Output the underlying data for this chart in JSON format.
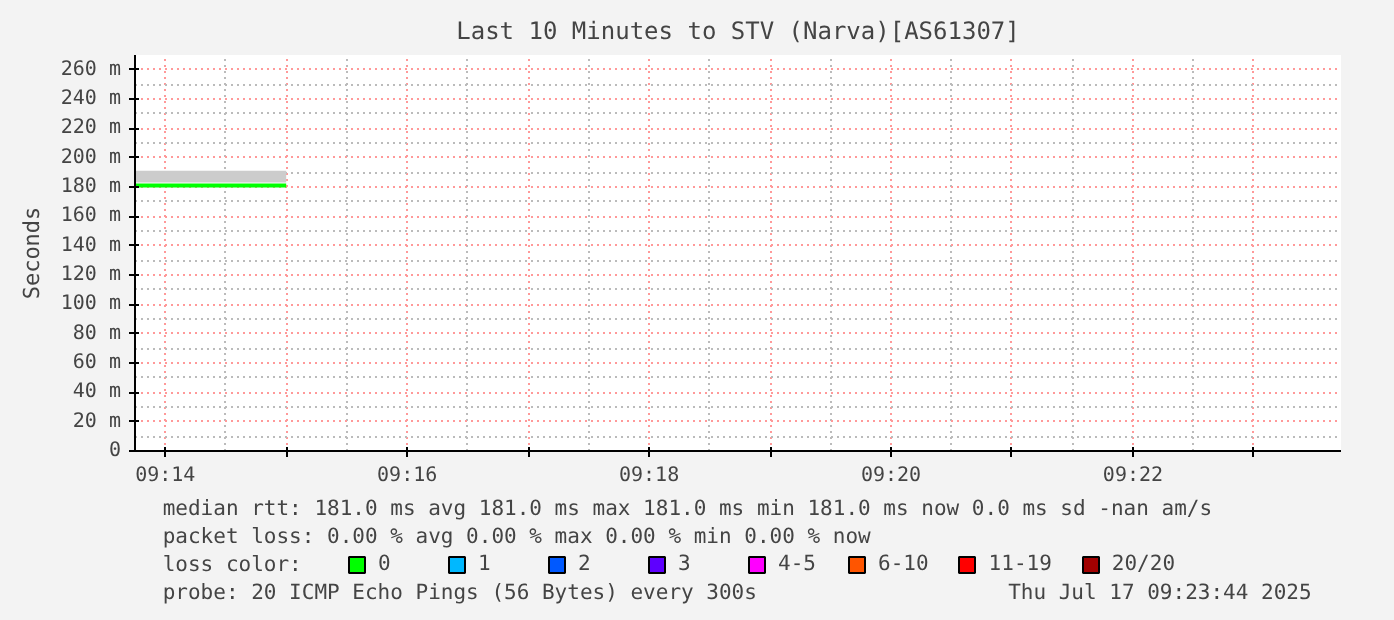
{
  "chart_data": {
    "type": "step",
    "title": "Last 10 Minutes to STV (Narva)[AS61307]",
    "ylabel": "Seconds",
    "xlim": [
      9.229167,
      9.395333
    ],
    "ylim": [
      0,
      270
    ],
    "xticks": [
      {
        "value": 9.233333,
        "label": "09:14"
      },
      {
        "value": 9.25,
        "label": null
      },
      {
        "value": 9.266667,
        "label": "09:16"
      },
      {
        "value": 9.283333,
        "label": null
      },
      {
        "value": 9.3,
        "label": "09:18"
      },
      {
        "value": 9.316667,
        "label": null
      },
      {
        "value": 9.333333,
        "label": "09:20"
      },
      {
        "value": 9.35,
        "label": null
      },
      {
        "value": 9.366667,
        "label": "09:22"
      },
      {
        "value": 9.383333,
        "label": null
      }
    ],
    "yticks": [
      0,
      {
        "value": 20,
        "label": "20 m"
      },
      {
        "value": 40,
        "label": "40 m"
      },
      {
        "value": 60,
        "label": "60 m"
      },
      {
        "value": 80,
        "label": "80 m"
      },
      {
        "value": 100,
        "label": "100 m"
      },
      {
        "value": 120,
        "label": "120 m"
      },
      {
        "value": 140,
        "label": "140 m"
      },
      {
        "value": 160,
        "label": "160 m"
      },
      {
        "value": 180,
        "label": "180 m"
      },
      {
        "value": 200,
        "label": "200 m"
      },
      {
        "value": 220,
        "label": "220 m"
      },
      {
        "value": 240,
        "label": "240 m"
      },
      {
        "value": 260,
        "label": "260 m"
      }
    ],
    "grid": true,
    "legend": "bottom",
    "legend_title": "loss color:",
    "series": [
      {
        "name": "0",
        "color": "#00ff00",
        "x": [
          9.229167,
          9.25
        ],
        "values": [
          181,
          181
        ],
        "lower": [
          183,
          183
        ],
        "upper": [
          191,
          191
        ]
      },
      {
        "name": "1",
        "color": "#00b8ff"
      },
      {
        "name": "2",
        "color": "#0059ff"
      },
      {
        "name": "3",
        "color": "#5e00ff"
      },
      {
        "name": "4-5",
        "color": "#ff00ff"
      },
      {
        "name": "6-10",
        "color": "#ff5500"
      },
      {
        "name": "11-19",
        "color": "#ff0000"
      },
      {
        "name": "20/20",
        "color": "#a10000"
      }
    ],
    "annotations": [
      "median rtt:  181.0 ms avg  181.0 ms max  181.0 ms min  181.0 ms now  0.0 ms sd  -nan   am/s",
      "packet loss: 0.00 % avg  0.00 % max  0.00 % min  0.00 % now",
      "probe:       20 ICMP Echo Pings (56 Bytes) every 300s",
      "Thu Jul 17 09:23:44 2025"
    ]
  }
}
